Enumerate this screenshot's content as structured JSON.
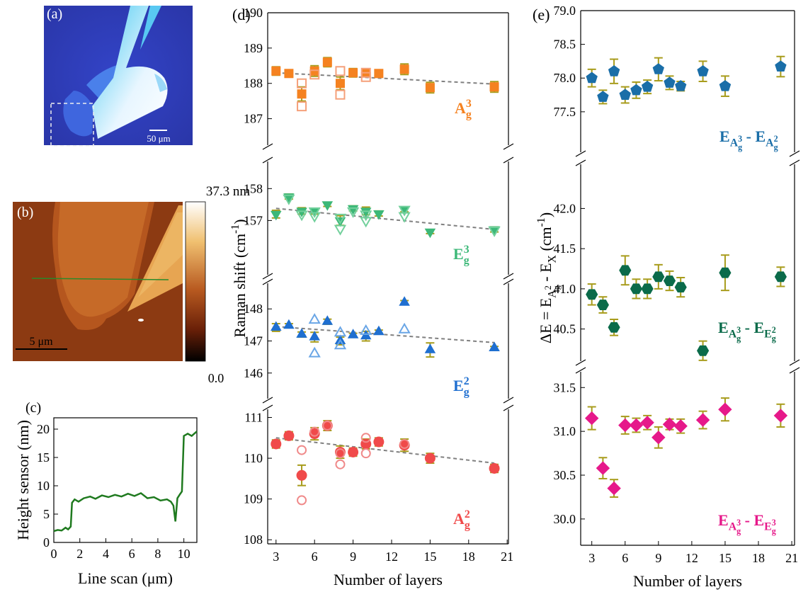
{
  "images": [
    {
      "label": "(a)",
      "scale_bar": "50 μm"
    },
    {
      "label": "(b)",
      "scale_bar": "5 μm",
      "colorbar_max": "37.3 nm",
      "colorbar_min": "0.0"
    }
  ],
  "chart_data": [
    {
      "type": "line",
      "label": "(c)",
      "xlabel": "Line scan (μm)",
      "ylabel": "Height sensor (nm)",
      "color": "#1f7a1f",
      "x": [
        0,
        0.3,
        0.6,
        0.9,
        1.1,
        1.3,
        1.4,
        1.6,
        1.9,
        2.3,
        2.8,
        3.2,
        3.7,
        4.2,
        4.7,
        5.2,
        5.7,
        6.2,
        6.7,
        7.2,
        7.7,
        8.2,
        8.7,
        9.0,
        9.2,
        9.35,
        9.5,
        9.7,
        9.85,
        10.0,
        10.3,
        10.6,
        11.0
      ],
      "values": [
        2.0,
        2.2,
        2.1,
        2.6,
        2.3,
        2.8,
        7.0,
        7.6,
        7.2,
        7.8,
        8.1,
        7.7,
        8.3,
        8.0,
        8.4,
        8.1,
        8.6,
        8.2,
        8.7,
        7.8,
        8.0,
        7.4,
        7.6,
        7.2,
        6.5,
        3.7,
        7.8,
        8.5,
        9.0,
        18.8,
        19.2,
        18.8,
        19.6
      ],
      "xlim": [
        0,
        11
      ],
      "xticks": [
        0,
        2,
        4,
        6,
        8,
        10
      ],
      "ylim": [
        0,
        22
      ],
      "yticks": [
        0,
        5,
        10,
        15,
        20
      ]
    },
    {
      "type": "broken-scatter",
      "label": "(d)",
      "xlabel": "Number of layers",
      "ylabel": [
        {
          "text": "Raman shift (cm"
        },
        {
          "text": "-1",
          "shift": "sup"
        },
        {
          "text": ")"
        }
      ],
      "xlim": [
        2.35,
        21.1
      ],
      "xticks": [
        3,
        6,
        9,
        12,
        15,
        18,
        21
      ],
      "error_color": "#a89c1c",
      "segments": [
        {
          "ylim": [
            186.25,
            190
          ],
          "yticks": [
            187,
            188,
            189,
            190
          ],
          "annotation": {
            "color": "#f58220",
            "parts": [
              {
                "text": "A"
              },
              {
                "text": "g",
                "shift": "sub"
              },
              {
                "text": "3",
                "shift": "sup",
                "stack": true
              }
            ]
          },
          "fit": {
            "x": [
              3,
              20
            ],
            "values": [
              188.3,
              187.98
            ]
          },
          "series": [
            {
              "marker": "square",
              "filled": true,
              "color": "#f58220",
              "x": [
                3,
                4,
                5,
                6,
                7,
                8,
                9,
                10,
                11,
                13,
                15,
                20
              ],
              "values": [
                188.35,
                188.28,
                187.7,
                188.35,
                188.6,
                188.0,
                188.3,
                188.3,
                188.28,
                188.4,
                187.88,
                187.9
              ],
              "errors": [
                0.12,
                0.08,
                0.2,
                0.15,
                0.13,
                0.18,
                0.12,
                0.1,
                0.08,
                0.15,
                0.15,
                0.15
              ]
            },
            {
              "marker": "square",
              "filled": false,
              "color": "#f5a07a",
              "x": [
                5,
                5,
                6,
                8,
                8,
                10,
                10
              ],
              "values": [
                188.0,
                187.35,
                188.25,
                188.35,
                187.68,
                188.3,
                188.18
              ]
            }
          ]
        },
        {
          "ylim": [
            155.3,
            158.85
          ],
          "yticks": [
            157,
            158
          ],
          "annotation": {
            "color": "#3cb878",
            "parts": [
              {
                "text": "E"
              },
              {
                "text": "g",
                "shift": "sub"
              },
              {
                "text": "3",
                "shift": "sup",
                "stack": true
              }
            ]
          },
          "fit": {
            "x": [
              3,
              20
            ],
            "values": [
              157.38,
              156.72
            ]
          },
          "series": [
            {
              "marker": "triangle-down",
              "filled": true,
              "color": "#3cb878",
              "x": [
                3,
                4,
                5,
                6,
                7,
                8,
                9,
                10,
                11,
                13,
                15,
                20
              ],
              "values": [
                157.2,
                157.75,
                157.3,
                157.28,
                157.5,
                157.0,
                157.38,
                157.3,
                157.22,
                157.35,
                156.65,
                156.72
              ],
              "errors": [
                0.12,
                0.08,
                0.1,
                0.08,
                0.06,
                0.15,
                0.08,
                0.12,
                0.08,
                0.08,
                0.06,
                0.08
              ]
            },
            {
              "marker": "triangle-down",
              "filled": false,
              "color": "#72d09c",
              "x": [
                4,
                5,
                6,
                6,
                8,
                8,
                9,
                10,
                10,
                13,
                13,
                20
              ],
              "values": [
                157.7,
                157.2,
                157.15,
                157.3,
                156.75,
                157.1,
                157.3,
                157.0,
                157.2,
                157.35,
                157.15,
                156.7
              ]
            }
          ]
        },
        {
          "ylim": [
            145.2,
            148.8
          ],
          "yticks": [
            146,
            147,
            148
          ],
          "annotation": {
            "color": "#1f6fd0",
            "parts": [
              {
                "text": "E"
              },
              {
                "text": "g",
                "shift": "sub"
              },
              {
                "text": "2",
                "shift": "sup",
                "stack": true
              }
            ]
          },
          "fit": {
            "x": [
              3,
              20
            ],
            "values": [
              147.45,
              146.95
            ]
          },
          "series": [
            {
              "marker": "triangle-up",
              "filled": true,
              "color": "#1f6fd0",
              "x": [
                3,
                4,
                5,
                6,
                7,
                8,
                9,
                10,
                11,
                13,
                15,
                20
              ],
              "values": [
                147.42,
                147.48,
                147.2,
                147.12,
                147.6,
                147.0,
                147.18,
                147.15,
                147.28,
                148.2,
                146.72,
                146.78
              ],
              "errors": [
                0.12,
                0.06,
                0.08,
                0.15,
                0.08,
                0.12,
                0.06,
                0.15,
                0.06,
                0.06,
                0.22,
                0.05
              ]
            },
            {
              "marker": "triangle-up",
              "filled": false,
              "color": "#6aa6e6",
              "x": [
                6,
                6,
                8,
                8,
                10,
                13
              ],
              "values": [
                147.65,
                146.6,
                147.25,
                146.85,
                147.3,
                147.35
              ]
            }
          ]
        },
        {
          "ylim": [
            107.9,
            111.2
          ],
          "yticks": [
            108,
            109,
            110,
            111
          ],
          "annotation": {
            "color": "#f04a4a",
            "parts": [
              {
                "text": "A"
              },
              {
                "text": "g",
                "shift": "sub"
              },
              {
                "text": "2",
                "shift": "sup",
                "stack": true
              }
            ]
          },
          "fit": {
            "x": [
              3,
              20
            ],
            "values": [
              110.5,
              109.88
            ]
          },
          "series": [
            {
              "marker": "circle",
              "filled": true,
              "color": "#f04a4a",
              "x": [
                3,
                4,
                5,
                6,
                7,
                8,
                9,
                10,
                11,
                13,
                15,
                20
              ],
              "values": [
                110.35,
                110.55,
                109.58,
                110.6,
                110.8,
                110.15,
                110.15,
                110.35,
                110.4,
                110.32,
                110.0,
                109.75
              ],
              "errors": [
                0.1,
                0.1,
                0.25,
                0.15,
                0.12,
                0.15,
                0.1,
                0.12,
                0.1,
                0.15,
                0.12,
                0.1
              ]
            },
            {
              "marker": "circle",
              "filled": false,
              "color": "#f08a8a",
              "x": [
                5,
                5,
                6,
                7,
                8,
                8,
                10,
                10,
                13
              ],
              "values": [
                110.2,
                108.97,
                110.65,
                110.8,
                110.12,
                109.85,
                110.5,
                110.12,
                110.35
              ]
            }
          ]
        }
      ]
    },
    {
      "type": "broken-scatter",
      "label": "(e)",
      "xlabel": "Number of layers",
      "ylabel": [
        {
          "text": "ΔE = E"
        },
        {
          "text": "A",
          "shift": "sub"
        },
        {
          "text": "g",
          "shift": "subsub"
        },
        {
          "text": "2",
          "shift": "subsup",
          "stack": true
        },
        {
          "text": " - E"
        },
        {
          "text": "X",
          "shift": "sub"
        },
        {
          "text": " (cm"
        },
        {
          "text": "-1",
          "shift": "sup"
        },
        {
          "text": ")"
        }
      ],
      "xlim": [
        2,
        21.25
      ],
      "xticks": [
        3,
        6,
        9,
        12,
        15,
        18,
        21
      ],
      "error_color": "#a89c1c",
      "segments": [
        {
          "ylim": [
            76.9,
            79.0
          ],
          "yticks": [
            77.5,
            {
              "value": 78,
              "label": "78.0"
            },
            78.5,
            {
              "value": 79,
              "label": "79.0"
            }
          ],
          "annotation": {
            "color": "#1a6ea8",
            "parts": [
              {
                "text": "E"
              },
              {
                "text": "A",
                "shift": "sub"
              },
              {
                "text": "g",
                "shift": "subsub"
              },
              {
                "text": "3",
                "shift": "subsup",
                "stack": true
              },
              {
                "text": " - E"
              },
              {
                "text": "A",
                "shift": "sub"
              },
              {
                "text": "g",
                "shift": "subsub"
              },
              {
                "text": "2",
                "shift": "subsup",
                "stack": true
              }
            ]
          },
          "series": [
            {
              "marker": "pentagon",
              "filled": true,
              "color": "#1a6ea8",
              "x": [
                3,
                4,
                5,
                6,
                7,
                8,
                9,
                10,
                11,
                13,
                15,
                20
              ],
              "values": [
                78.0,
                77.72,
                78.1,
                77.75,
                77.82,
                77.87,
                78.13,
                77.93,
                77.88,
                78.1,
                77.88,
                78.17
              ],
              "errors": [
                0.13,
                0.1,
                0.18,
                0.12,
                0.12,
                0.1,
                0.17,
                0.1,
                0.07,
                0.15,
                0.15,
                0.15
              ]
            }
          ]
        },
        {
          "ylim": [
            40.1,
            42.55
          ],
          "yticks": [
            40.5,
            {
              "value": 41,
              "label": "41.0"
            },
            41.5,
            {
              "value": 42,
              "label": "42.0"
            }
          ],
          "annotation": {
            "color": "#0b6b4a",
            "parts": [
              {
                "text": "E"
              },
              {
                "text": "A",
                "shift": "sub"
              },
              {
                "text": "g",
                "shift": "subsub"
              },
              {
                "text": "3",
                "shift": "subsup",
                "stack": true
              },
              {
                "text": " - E"
              },
              {
                "text": "E",
                "shift": "sub"
              },
              {
                "text": "g",
                "shift": "subsub"
              },
              {
                "text": "2",
                "shift": "subsup",
                "stack": true
              }
            ]
          },
          "series": [
            {
              "marker": "hexagon",
              "filled": true,
              "color": "#0b6b4a",
              "x": [
                3,
                4,
                5,
                6,
                7,
                8,
                9,
                10,
                11,
                13,
                15,
                20
              ],
              "values": [
                40.93,
                40.8,
                40.52,
                41.23,
                41.0,
                41.0,
                41.15,
                41.1,
                41.02,
                40.23,
                41.2,
                41.15
              ],
              "errors": [
                0.13,
                0.1,
                0.1,
                0.18,
                0.12,
                0.12,
                0.15,
                0.12,
                0.12,
                0.12,
                0.22,
                0.12
              ]
            }
          ]
        },
        {
          "ylim": [
            29.7,
            31.68
          ],
          "yticks": [
            {
              "value": 30,
              "label": "30.0"
            },
            30.5,
            {
              "value": 31,
              "label": "31.0"
            },
            31.5
          ],
          "annotation": {
            "color": "#e6198a",
            "parts": [
              {
                "text": "E"
              },
              {
                "text": "A",
                "shift": "sub"
              },
              {
                "text": "g",
                "shift": "subsub"
              },
              {
                "text": "3",
                "shift": "subsup",
                "stack": true
              },
              {
                "text": " - E"
              },
              {
                "text": "E",
                "shift": "sub"
              },
              {
                "text": "g",
                "shift": "subsub"
              },
              {
                "text": "3",
                "shift": "subsup",
                "stack": true
              }
            ]
          },
          "series": [
            {
              "marker": "diamond",
              "filled": true,
              "color": "#e6198a",
              "x": [
                3,
                4,
                5,
                6,
                7,
                8,
                9,
                10,
                11,
                13,
                15,
                20
              ],
              "values": [
                31.15,
                30.58,
                30.35,
                31.07,
                31.07,
                31.1,
                30.93,
                31.08,
                31.06,
                31.13,
                31.25,
                31.18
              ],
              "errors": [
                0.13,
                0.12,
                0.1,
                0.1,
                0.08,
                0.08,
                0.12,
                0.06,
                0.08,
                0.1,
                0.13,
                0.13
              ]
            }
          ]
        }
      ]
    }
  ]
}
